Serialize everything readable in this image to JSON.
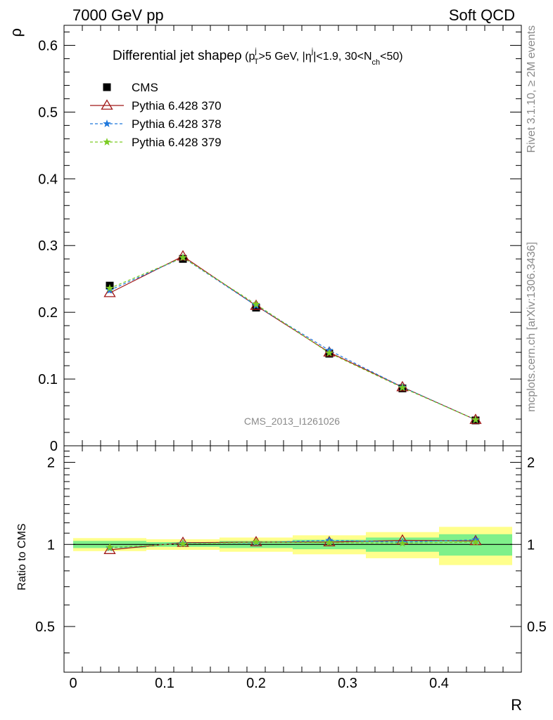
{
  "header": {
    "left": "7000 GeV pp",
    "right": "Soft QCD"
  },
  "side": {
    "rivet": "Rivet 3.1.10, ≥ 2M events",
    "mcplots": "mcplots.cern.ch [arXiv:1306.3436]"
  },
  "chart_data": {
    "type": "line",
    "title_parts": {
      "main": "Differential jet shape",
      "rho": "ρ",
      "open": " (p",
      "sup_j1": "j",
      "sub_T": "T",
      "mid1": ">5 GeV, |η",
      "sup_j2": "j",
      "mid2": "|<1.9, 30<N",
      "sub_ch": "ch",
      "close": "<50)"
    },
    "watermark": "CMS_2013_I1261026",
    "xlabel": "R",
    "ylabel": "ρ",
    "ratio_ylabel": "Ratio to CMS",
    "xlim": [
      -0.01,
      0.49
    ],
    "ylim": [
      0,
      0.63
    ],
    "ratio_ylim": [
      0.34,
      2.3
    ],
    "x_ticks": [
      "0",
      "0.1",
      "0.2",
      "0.3",
      "0.4"
    ],
    "y_ticks": [
      "0",
      "0.1",
      "0.2",
      "0.3",
      "0.4",
      "0.5",
      "0.6"
    ],
    "ratio_ticks": [
      "0.5",
      "1",
      "2"
    ],
    "x": [
      0.04,
      0.12,
      0.2,
      0.28,
      0.36,
      0.44
    ],
    "bin_edges": [
      0.0,
      0.08,
      0.16,
      0.24,
      0.32,
      0.4,
      0.48
    ],
    "band_inner": [
      0.03,
      0.02,
      0.03,
      0.04,
      0.06,
      0.09
    ],
    "band_outer": [
      0.055,
      0.045,
      0.06,
      0.08,
      0.11,
      0.16
    ],
    "series": [
      {
        "name": "CMS",
        "marker": "square",
        "color": "#000000",
        "values": [
          0.24,
          0.28,
          0.207,
          0.138,
          0.086,
          0.038
        ],
        "ratio": [
          1.0,
          1.0,
          1.0,
          1.0,
          1.0,
          1.0
        ]
      },
      {
        "name": "Pythia 6.428 370",
        "marker": "triangle",
        "color": "#a01818",
        "values": [
          0.229,
          0.284,
          0.21,
          0.14,
          0.088,
          0.039
        ],
        "ratio": [
          0.955,
          1.015,
          1.02,
          1.02,
          1.035,
          1.03
        ]
      },
      {
        "name": "Pythia 6.428 378",
        "marker": "star",
        "color": "#1e78dc",
        "values": [
          0.233,
          0.282,
          0.21,
          0.143,
          0.088,
          0.039
        ],
        "ratio": [
          0.97,
          1.01,
          1.015,
          1.035,
          1.02,
          1.04
        ]
      },
      {
        "name": "Pythia 6.428 379",
        "marker": "star",
        "color": "#7ccc24",
        "values": [
          0.236,
          0.282,
          0.212,
          0.139,
          0.087,
          0.039
        ],
        "ratio": [
          0.975,
          1.005,
          1.02,
          1.015,
          1.01,
          1.02
        ]
      }
    ],
    "band_colors": {
      "inner": "#7ff08a",
      "outer": "#ffff8c"
    }
  }
}
